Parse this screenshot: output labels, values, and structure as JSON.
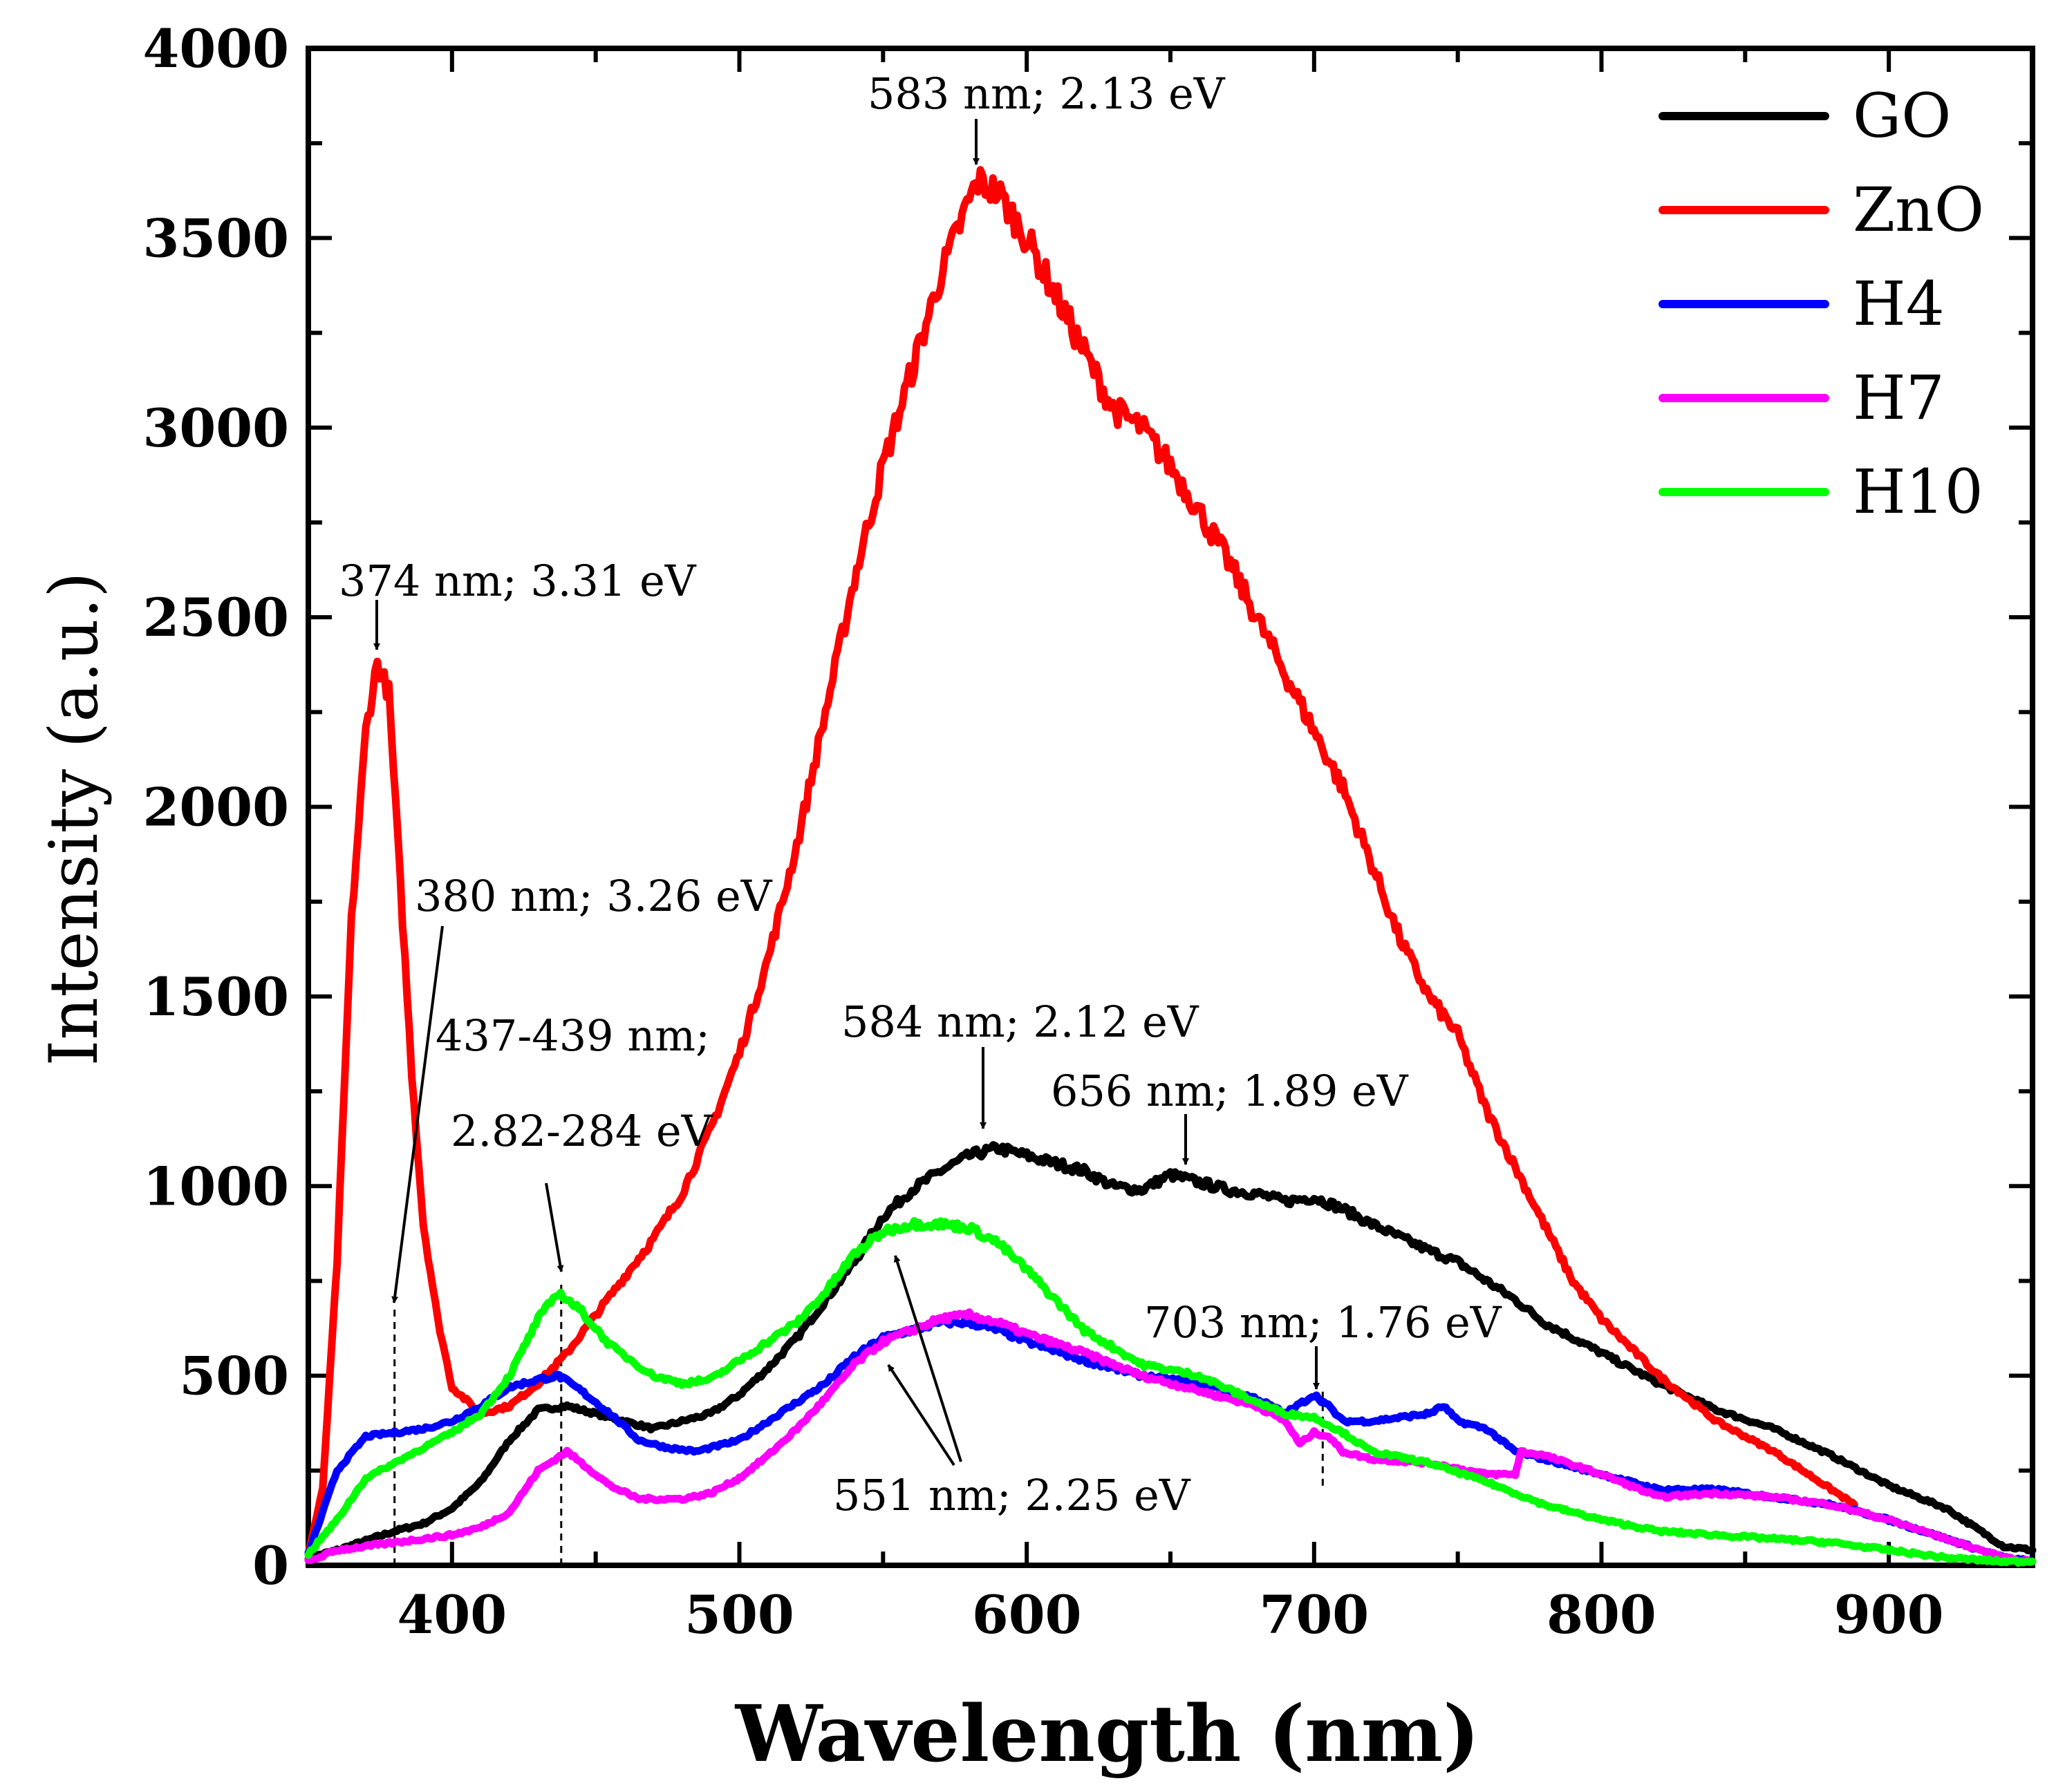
{
  "chart_data": {
    "type": "line",
    "title": "",
    "xlabel": "Wavelength (nm)",
    "ylabel": "Intensity (a.u.)",
    "xlim": [
      350,
      950
    ],
    "ylim": [
      0,
      4000
    ],
    "xticks": [
      400,
      500,
      600,
      700,
      800,
      900
    ],
    "yticks": [
      0,
      500,
      1000,
      1500,
      2000,
      2500,
      3000,
      3500,
      4000
    ],
    "legend_position": "top-right",
    "series": [
      {
        "name": "GO",
        "color": "#000000",
        "points": [
          [
            350,
            20
          ],
          [
            360,
            40
          ],
          [
            380,
            90
          ],
          [
            390,
            110
          ],
          [
            400,
            150
          ],
          [
            410,
            220
          ],
          [
            420,
            330
          ],
          [
            430,
            410
          ],
          [
            440,
            420
          ],
          [
            450,
            400
          ],
          [
            460,
            380
          ],
          [
            470,
            360
          ],
          [
            480,
            380
          ],
          [
            490,
            400
          ],
          [
            500,
            450
          ],
          [
            510,
            520
          ],
          [
            520,
            600
          ],
          [
            530,
            700
          ],
          [
            540,
            800
          ],
          [
            550,
            920
          ],
          [
            560,
            990
          ],
          [
            570,
            1040
          ],
          [
            580,
            1080
          ],
          [
            590,
            1100
          ],
          [
            600,
            1080
          ],
          [
            620,
            1040
          ],
          [
            630,
            1000
          ],
          [
            640,
            990
          ],
          [
            650,
            1030
          ],
          [
            660,
            1010
          ],
          [
            670,
            990
          ],
          [
            680,
            980
          ],
          [
            690,
            960
          ],
          [
            700,
            970
          ],
          [
            710,
            940
          ],
          [
            720,
            900
          ],
          [
            740,
            830
          ],
          [
            750,
            800
          ],
          [
            760,
            750
          ],
          [
            770,
            700
          ],
          [
            780,
            640
          ],
          [
            800,
            560
          ],
          [
            820,
            480
          ],
          [
            840,
            410
          ],
          [
            860,
            360
          ],
          [
            880,
            290
          ],
          [
            900,
            210
          ],
          [
            920,
            150
          ],
          [
            940,
            50
          ],
          [
            950,
            40
          ]
        ]
      },
      {
        "name": "ZnO",
        "color": "#ff0000",
        "points": [
          [
            350,
            30
          ],
          [
            355,
            200
          ],
          [
            360,
            800
          ],
          [
            365,
            1700
          ],
          [
            370,
            2200
          ],
          [
            374,
            2380
          ],
          [
            378,
            2300
          ],
          [
            382,
            1800
          ],
          [
            386,
            1300
          ],
          [
            390,
            900
          ],
          [
            395,
            650
          ],
          [
            400,
            470
          ],
          [
            410,
            400
          ],
          [
            420,
            420
          ],
          [
            430,
            480
          ],
          [
            440,
            560
          ],
          [
            450,
            660
          ],
          [
            460,
            760
          ],
          [
            470,
            860
          ],
          [
            480,
            980
          ],
          [
            490,
            1150
          ],
          [
            500,
            1350
          ],
          [
            510,
            1600
          ],
          [
            520,
            1900
          ],
          [
            530,
            2250
          ],
          [
            540,
            2600
          ],
          [
            550,
            2900
          ],
          [
            560,
            3150
          ],
          [
            570,
            3400
          ],
          [
            580,
            3600
          ],
          [
            583,
            3650
          ],
          [
            590,
            3620
          ],
          [
            600,
            3500
          ],
          [
            610,
            3350
          ],
          [
            620,
            3200
          ],
          [
            630,
            3050
          ],
          [
            640,
            3000
          ],
          [
            650,
            2900
          ],
          [
            660,
            2780
          ],
          [
            670,
            2650
          ],
          [
            680,
            2500
          ],
          [
            690,
            2350
          ],
          [
            700,
            2200
          ],
          [
            710,
            2050
          ],
          [
            720,
            1850
          ],
          [
            730,
            1650
          ],
          [
            740,
            1500
          ],
          [
            750,
            1400
          ],
          [
            760,
            1200
          ],
          [
            770,
            1050
          ],
          [
            780,
            900
          ],
          [
            790,
            750
          ],
          [
            800,
            650
          ],
          [
            820,
            500
          ],
          [
            840,
            380
          ],
          [
            860,
            300
          ],
          [
            880,
            200
          ],
          [
            888,
            160
          ]
        ]
      },
      {
        "name": "H4",
        "color": "#0000ff",
        "points": [
          [
            350,
            30
          ],
          [
            360,
            250
          ],
          [
            370,
            340
          ],
          [
            380,
            350
          ],
          [
            390,
            360
          ],
          [
            400,
            380
          ],
          [
            410,
            420
          ],
          [
            420,
            470
          ],
          [
            430,
            490
          ],
          [
            437,
            500
          ],
          [
            445,
            460
          ],
          [
            455,
            400
          ],
          [
            465,
            330
          ],
          [
            475,
            310
          ],
          [
            485,
            300
          ],
          [
            500,
            330
          ],
          [
            510,
            380
          ],
          [
            520,
            430
          ],
          [
            530,
            480
          ],
          [
            540,
            550
          ],
          [
            550,
            600
          ],
          [
            560,
            620
          ],
          [
            570,
            640
          ],
          [
            580,
            640
          ],
          [
            590,
            620
          ],
          [
            600,
            590
          ],
          [
            620,
            540
          ],
          [
            640,
            500
          ],
          [
            660,
            480
          ],
          [
            680,
            440
          ],
          [
            690,
            400
          ],
          [
            700,
            450
          ],
          [
            705,
            420
          ],
          [
            710,
            380
          ],
          [
            720,
            380
          ],
          [
            740,
            400
          ],
          [
            745,
            420
          ],
          [
            750,
            380
          ],
          [
            760,
            360
          ],
          [
            770,
            300
          ],
          [
            780,
            280
          ],
          [
            800,
            240
          ],
          [
            820,
            200
          ],
          [
            840,
            200
          ],
          [
            860,
            180
          ],
          [
            880,
            160
          ],
          [
            900,
            120
          ],
          [
            920,
            70
          ],
          [
            940,
            20
          ],
          [
            950,
            10
          ]
        ]
      },
      {
        "name": "H7",
        "color": "#ff00ff",
        "points": [
          [
            350,
            10
          ],
          [
            360,
            40
          ],
          [
            380,
            60
          ],
          [
            400,
            80
          ],
          [
            410,
            100
          ],
          [
            420,
            140
          ],
          [
            430,
            250
          ],
          [
            440,
            300
          ],
          [
            445,
            270
          ],
          [
            455,
            210
          ],
          [
            465,
            175
          ],
          [
            480,
            175
          ],
          [
            490,
            190
          ],
          [
            500,
            230
          ],
          [
            510,
            290
          ],
          [
            520,
            360
          ],
          [
            530,
            440
          ],
          [
            540,
            530
          ],
          [
            550,
            590
          ],
          [
            560,
            620
          ],
          [
            570,
            650
          ],
          [
            580,
            660
          ],
          [
            590,
            640
          ],
          [
            600,
            610
          ],
          [
            620,
            560
          ],
          [
            640,
            500
          ],
          [
            660,
            460
          ],
          [
            680,
            420
          ],
          [
            690,
            380
          ],
          [
            695,
            320
          ],
          [
            700,
            350
          ],
          [
            705,
            340
          ],
          [
            710,
            300
          ],
          [
            720,
            280
          ],
          [
            740,
            270
          ],
          [
            760,
            240
          ],
          [
            770,
            240
          ],
          [
            772,
            300
          ],
          [
            780,
            290
          ],
          [
            800,
            240
          ],
          [
            820,
            180
          ],
          [
            840,
            190
          ],
          [
            860,
            180
          ],
          [
            880,
            160
          ],
          [
            900,
            120
          ],
          [
            920,
            70
          ],
          [
            940,
            20
          ],
          [
            950,
            10
          ]
        ]
      },
      {
        "name": "H10",
        "color": "#00ff00",
        "points": [
          [
            350,
            30
          ],
          [
            360,
            120
          ],
          [
            370,
            230
          ],
          [
            380,
            270
          ],
          [
            390,
            310
          ],
          [
            400,
            350
          ],
          [
            410,
            400
          ],
          [
            420,
            500
          ],
          [
            430,
            650
          ],
          [
            437,
            720
          ],
          [
            445,
            670
          ],
          [
            455,
            580
          ],
          [
            470,
            500
          ],
          [
            480,
            480
          ],
          [
            490,
            490
          ],
          [
            500,
            540
          ],
          [
            510,
            590
          ],
          [
            520,
            640
          ],
          [
            530,
            720
          ],
          [
            540,
            820
          ],
          [
            550,
            880
          ],
          [
            560,
            900
          ],
          [
            570,
            900
          ],
          [
            580,
            890
          ],
          [
            590,
            850
          ],
          [
            600,
            780
          ],
          [
            610,
            700
          ],
          [
            620,
            620
          ],
          [
            640,
            530
          ],
          [
            660,
            500
          ],
          [
            680,
            430
          ],
          [
            690,
            400
          ],
          [
            700,
            390
          ],
          [
            710,
            350
          ],
          [
            720,
            300
          ],
          [
            740,
            270
          ],
          [
            760,
            220
          ],
          [
            780,
            160
          ],
          [
            800,
            120
          ],
          [
            820,
            90
          ],
          [
            840,
            80
          ],
          [
            860,
            70
          ],
          [
            880,
            60
          ],
          [
            900,
            40
          ],
          [
            920,
            20
          ],
          [
            940,
            10
          ],
          [
            950,
            10
          ]
        ]
      }
    ],
    "annotations": [
      {
        "text": "374 nm; 3.31 eV",
        "arrow": "short",
        "target": [
          374,
          2400
        ]
      },
      {
        "text": "583 nm; 2.13 eV",
        "arrow": "short",
        "target": [
          583,
          3660
        ]
      },
      {
        "text": "380 nm; 3.26 eV",
        "arrow": "long",
        "target": [
          380,
          680
        ]
      },
      {
        "text": "437-439 nm;",
        "arrow": "none"
      },
      {
        "text": "2.82-284 eV",
        "arrow": "short",
        "target": [
          437,
          740
        ]
      },
      {
        "text": "584 nm; 2.12 eV",
        "arrow": "long",
        "target": [
          584,
          1110
        ]
      },
      {
        "text": "656 nm; 1.89 eV",
        "arrow": "short",
        "target": [
          656,
          1030
        ]
      },
      {
        "text": "703 nm; 1.76 eV",
        "arrow": "short",
        "target": [
          703,
          460
        ]
      },
      {
        "text": "551 nm; 2.25 eV",
        "arrow": "double",
        "targets": [
          [
            551,
            810
          ],
          [
            544,
            520
          ]
        ]
      }
    ],
    "reference_lines": [
      {
        "x": 380,
        "y_from": 0,
        "y_to": 680
      },
      {
        "x": 438,
        "y_from": 0,
        "y_to": 740
      },
      {
        "x": 703,
        "y_from": 210,
        "y_to": 460
      }
    ]
  }
}
